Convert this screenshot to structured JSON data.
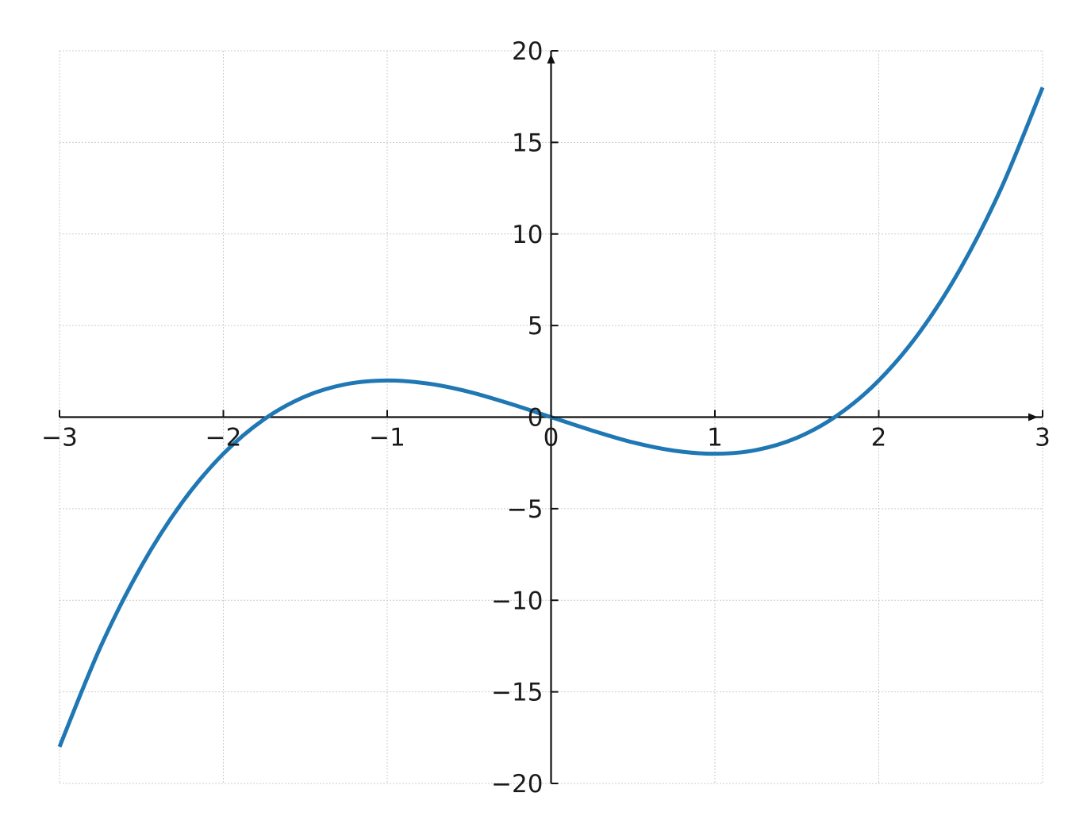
{
  "chart_data": {
    "type": "line",
    "title": "",
    "xlabel": "",
    "ylabel": "",
    "xlim": [
      -3,
      3
    ],
    "ylim": [
      -20,
      20
    ],
    "x_ticks": [
      -3,
      -2,
      -1,
      0,
      1,
      2,
      3
    ],
    "y_ticks": [
      -20,
      -15,
      -10,
      -5,
      0,
      5,
      10,
      15,
      20
    ],
    "x_tick_labels": [
      "−3",
      "−2",
      "−1",
      "0",
      "1",
      "2",
      "3"
    ],
    "y_tick_labels": [
      "−20",
      "−15",
      "−10",
      "−5",
      "0",
      "5",
      "10",
      "15",
      "20"
    ],
    "grid": true,
    "spines": "centered at origin with arrowheads",
    "series": [
      {
        "color": "#1f77b4",
        "x": [
          -3,
          -2.75,
          -2.5,
          -2.25,
          -2,
          -1.75,
          -1.5,
          -1.25,
          -1,
          -0.75,
          -0.5,
          -0.25,
          0,
          0.25,
          0.5,
          0.75,
          1,
          1.25,
          1.5,
          1.75,
          2,
          2.25,
          2.5,
          2.75,
          3
        ],
        "y": [
          -18,
          -12.55,
          -8.13,
          -4.64,
          -2,
          -0.11,
          1.13,
          1.8,
          2,
          1.83,
          1.38,
          0.73,
          0,
          -0.73,
          -1.38,
          -1.83,
          -2,
          -1.8,
          -1.13,
          0.11,
          2,
          4.64,
          8.13,
          12.55,
          18
        ]
      }
    ]
  }
}
